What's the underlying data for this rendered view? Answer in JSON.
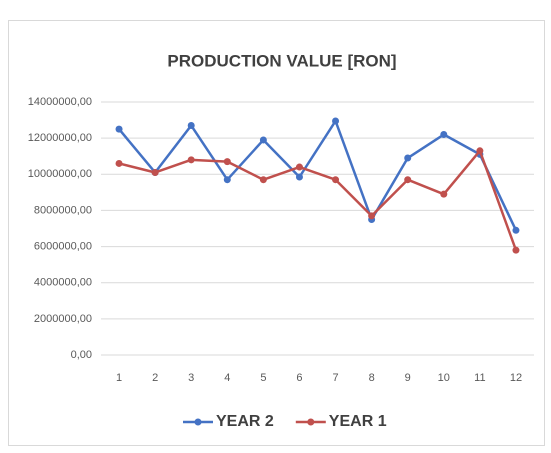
{
  "chart_data": {
    "type": "line",
    "title": "PRODUCTION VALUE [RON]",
    "categories": [
      "1",
      "2",
      "3",
      "4",
      "5",
      "6",
      "7",
      "8",
      "9",
      "10",
      "11",
      "12"
    ],
    "series": [
      {
        "name": "YEAR 2",
        "color": "#4472c4",
        "values": [
          12500000,
          10100000,
          12700000,
          9700000,
          11900000,
          9850000,
          12950000,
          7500000,
          10900000,
          12200000,
          11100000,
          6900000
        ]
      },
      {
        "name": "YEAR 1",
        "color": "#c0504d",
        "values": [
          10600000,
          10100000,
          10800000,
          10700000,
          9700000,
          10400000,
          9700000,
          7700000,
          9700000,
          8900000,
          11300000,
          5800000
        ]
      }
    ],
    "ylim": [
      0,
      14000000
    ],
    "yticks": [
      {
        "value": 0,
        "label": "0,00"
      },
      {
        "value": 2000000,
        "label": "2000000,00"
      },
      {
        "value": 4000000,
        "label": "4000000,00"
      },
      {
        "value": 6000000,
        "label": "6000000,00"
      },
      {
        "value": 8000000,
        "label": "8000000,00"
      },
      {
        "value": 10000000,
        "label": "10000000,00"
      },
      {
        "value": 12000000,
        "label": "12000000,00"
      },
      {
        "value": 14000000,
        "label": "14000000,00"
      }
    ],
    "grid": true,
    "legend": "bottom"
  }
}
